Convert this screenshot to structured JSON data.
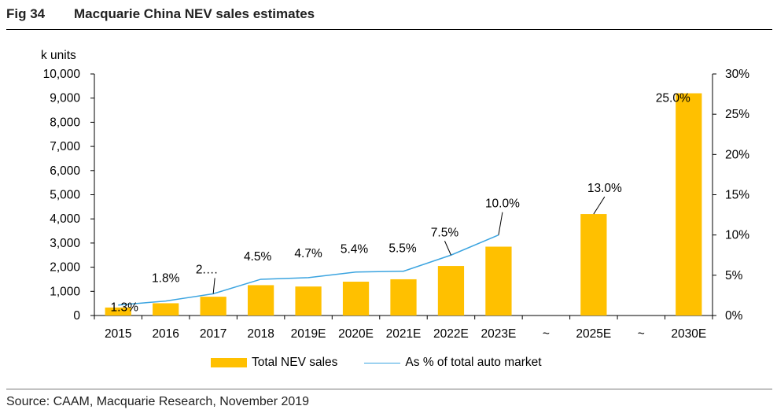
{
  "figure": {
    "label": "Fig 34",
    "title": "Macquarie China NEV sales estimates",
    "source": "Source: CAAM, Macquarie Research, November 2019"
  },
  "chart_data": {
    "type": "bar",
    "categories": [
      "2015",
      "2016",
      "2017",
      "2018",
      "2019E",
      "2020E",
      "2021E",
      "2022E",
      "2023E",
      "~",
      "2025E",
      "~",
      "2030E"
    ],
    "series": [
      {
        "name": "Total NEV sales",
        "type": "bar",
        "axis": "left",
        "color": "#FFC000",
        "values": [
          331,
          507,
          777,
          1256,
          1200,
          1400,
          1500,
          2050,
          2850,
          null,
          4200,
          null,
          9200
        ]
      },
      {
        "name": "As % of total auto market",
        "type": "line",
        "axis": "right",
        "color": "#3BA4E0",
        "values": [
          1.3,
          1.8,
          2.7,
          4.5,
          4.7,
          5.4,
          5.5,
          7.5,
          10.0,
          null,
          null,
          null,
          null
        ],
        "labels": [
          "1.3%",
          "1.8%",
          "2.…",
          "4.5%",
          "4.7%",
          "5.4%",
          "5.5%",
          "7.5%",
          "10.0%",
          "",
          "13.0%",
          "",
          "25.0%"
        ]
      }
    ],
    "ylabel": "k units",
    "ylim": [
      0,
      10000
    ],
    "yticks": [
      "0",
      "1,000",
      "2,000",
      "3,000",
      "4,000",
      "5,000",
      "6,000",
      "7,000",
      "8,000",
      "9,000",
      "10,000"
    ],
    "y2lim": [
      0,
      30
    ],
    "y2ticks": [
      "0%",
      "5%",
      "10%",
      "15%",
      "20%",
      "25%",
      "30%"
    ],
    "grid": false,
    "legend_position": "bottom"
  }
}
